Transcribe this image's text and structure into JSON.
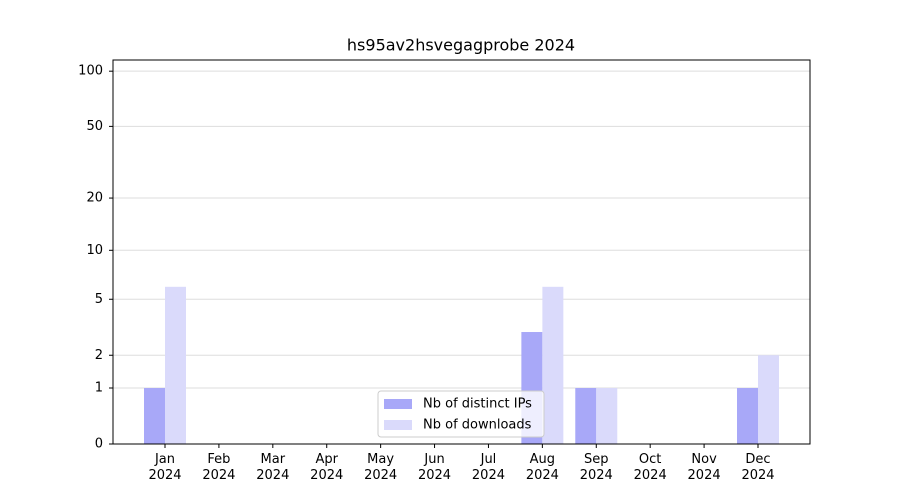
{
  "chart_data": {
    "type": "bar",
    "title": "hs95av2hsvegagprobe 2024",
    "categories": [
      "Jan 2024",
      "Feb 2024",
      "Mar 2024",
      "Apr 2024",
      "May 2024",
      "Jun 2024",
      "Jul 2024",
      "Aug 2024",
      "Sep 2024",
      "Oct 2024",
      "Nov 2024",
      "Dec 2024"
    ],
    "series": [
      {
        "name": "Nb of distinct IPs",
        "color": "#a8a8f8",
        "values": [
          1,
          0,
          0,
          0,
          0,
          0,
          0,
          3,
          1,
          0,
          0,
          1
        ]
      },
      {
        "name": "Nb of downloads",
        "color": "#dadafb",
        "values": [
          6,
          0,
          0,
          0,
          0,
          0,
          0,
          6,
          1,
          0,
          0,
          2
        ]
      }
    ],
    "yscale": "log1p",
    "ylim": [
      0,
      115
    ],
    "yticks": [
      0,
      1,
      2,
      5,
      10,
      20,
      50,
      100
    ],
    "grid": true,
    "legend": "lower center"
  }
}
